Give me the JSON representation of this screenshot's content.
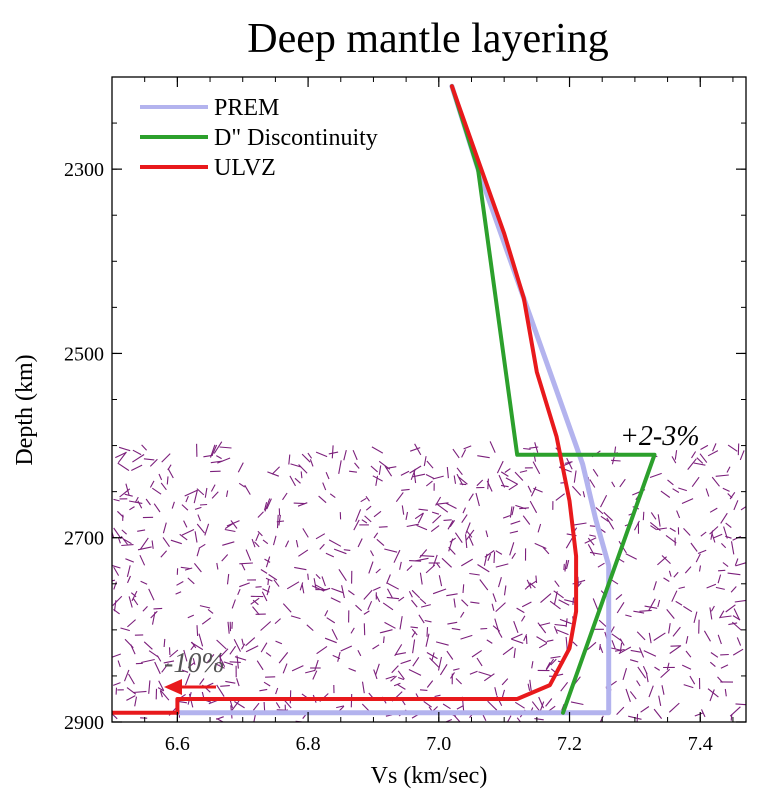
{
  "chart_data": {
    "type": "line",
    "title": "Deep mantle layering",
    "xlabel": "Vs (km/sec)",
    "ylabel": "Depth (km)",
    "xlim": [
      6.5,
      7.47
    ],
    "ylim": [
      2900,
      2200
    ],
    "y_inverted": true,
    "x_ticks": [
      "6.6",
      "6.8",
      "7.0",
      "7.2",
      "7.4"
    ],
    "y_ticks": [
      "2300",
      "2500",
      "2700",
      "2900"
    ],
    "legend_position": "top-left",
    "series": [
      {
        "name": "PREM",
        "color": "#b3b3ee",
        "points": [
          [
            7.02,
            2210
          ],
          [
            7.06,
            2300
          ],
          [
            7.11,
            2400
          ],
          [
            7.16,
            2500
          ],
          [
            7.2,
            2580
          ],
          [
            7.22,
            2620
          ],
          [
            7.24,
            2680
          ],
          [
            7.26,
            2730
          ],
          [
            7.26,
            2890
          ],
          [
            6.6,
            2890
          ]
        ]
      },
      {
        "name": "D\" Discontinuity",
        "color": "#2ca02c",
        "points": [
          [
            7.02,
            2210
          ],
          [
            7.06,
            2300
          ],
          [
            7.12,
            2610
          ],
          [
            7.33,
            2610
          ],
          [
            7.19,
            2890
          ]
        ]
      },
      {
        "name": "ULVZ",
        "color": "#e8191c",
        "points": [
          [
            7.02,
            2210
          ],
          [
            7.06,
            2290
          ],
          [
            7.1,
            2370
          ],
          [
            7.13,
            2440
          ],
          [
            7.15,
            2520
          ],
          [
            7.18,
            2590
          ],
          [
            7.2,
            2660
          ],
          [
            7.21,
            2720
          ],
          [
            7.21,
            2780
          ],
          [
            7.2,
            2820
          ],
          [
            7.17,
            2860
          ],
          [
            7.12,
            2875
          ],
          [
            6.6,
            2875
          ],
          [
            6.6,
            2890
          ],
          [
            6.5,
            2890
          ]
        ]
      }
    ],
    "annotations": [
      {
        "text": "+2-3%",
        "x": 7.34,
        "y": 2590
      },
      {
        "text": "-10%",
        "x": 6.6,
        "y": 2845
      }
    ],
    "shaded_region": {
      "y_from": 2610,
      "y_to": 2900,
      "pattern": "random purple dashes",
      "color": "#7b1f7b"
    }
  }
}
